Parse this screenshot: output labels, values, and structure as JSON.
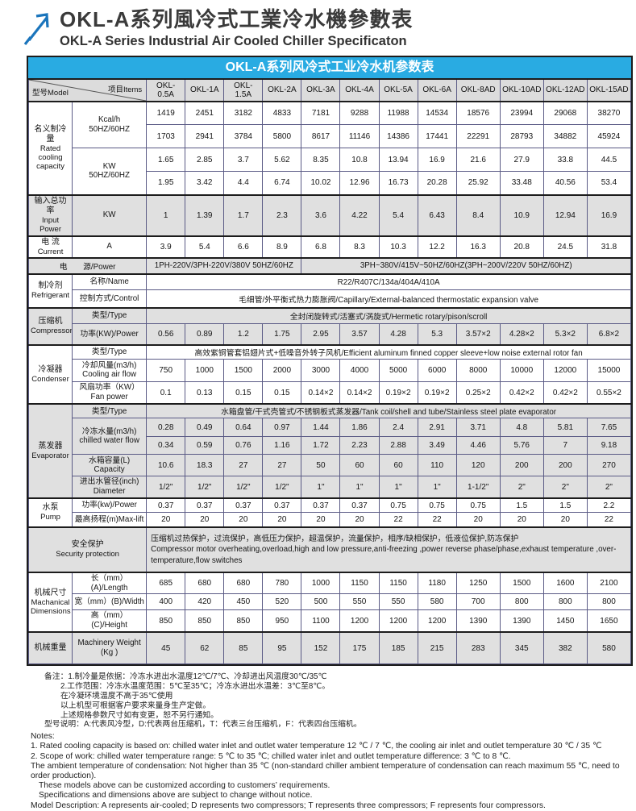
{
  "colors": {
    "accent_blue": "#29abe2",
    "logo_blue": "#1b75bc",
    "shade_gray": "#e0e0e0",
    "border_dark": "#1c1c1c"
  },
  "page": {
    "title_zh": "OKL-A系列風冷式工業冷水機參數表",
    "title_en": "OKL-A Series Industrial Air Cooled Chiller Specificaton"
  },
  "table": {
    "caption": "OKL-A系列风冷式工业冷水机参数表",
    "corner": {
      "model": "型号Model",
      "items": "项目Items"
    },
    "models": [
      "OKL-0.5A",
      "OKL-1A",
      "OKL-1.5A",
      "OKL-2A",
      "OKL-3A",
      "OKL-4A",
      "OKL-5A",
      "OKL-6A",
      "OKL-8AD",
      "OKL-10AD",
      "OKL-12AD",
      "OKL-15AD"
    ],
    "cooling": {
      "zh": "名义制冷量",
      "en": "Rated cooling capacity",
      "kcal_label1": "Kcal/h",
      "kcal_label2": "50HZ/60HZ",
      "kcal_50": [
        "1419",
        "2451",
        "3182",
        "4833",
        "7181",
        "9288",
        "11988",
        "14534",
        "18576",
        "23994",
        "29068",
        "38270"
      ],
      "kcal_60": [
        "1703",
        "2941",
        "3784",
        "5800",
        "8617",
        "11146",
        "14386",
        "17441",
        "22291",
        "28793",
        "34882",
        "45924"
      ],
      "kw_label1": "KW",
      "kw_label2": "50HZ/60HZ",
      "kw_50": [
        "1.65",
        "2.85",
        "3.7",
        "5.62",
        "8.35",
        "10.8",
        "13.94",
        "16.9",
        "21.6",
        "27.9",
        "33.8",
        "44.5"
      ],
      "kw_60": [
        "1.95",
        "3.42",
        "4.4",
        "6.74",
        "10.02",
        "12.96",
        "16.73",
        "20.28",
        "25.92",
        "33.48",
        "40.56",
        "53.4"
      ]
    },
    "input_power": {
      "zh": "输入总功率",
      "en": "Input Power",
      "unit": "KW",
      "values": [
        "1",
        "1.39",
        "1.7",
        "2.3",
        "3.6",
        "4.22",
        "5.4",
        "6.43",
        "8.4",
        "10.9",
        "12.94",
        "16.9"
      ]
    },
    "current": {
      "zh": "电 流",
      "en": "Current",
      "unit": "A",
      "values": [
        "3.9",
        "5.4",
        "6.6",
        "8.9",
        "6.8",
        "8.3",
        "10.3",
        "12.2",
        "16.3",
        "20.8",
        "24.5",
        "31.8"
      ]
    },
    "power_supply": {
      "label": "电　　源/Power",
      "left": "1PH-220V/3PH-220V/380V 50HZ/60HZ",
      "right": "3PH~380V/415V~50HZ/60HZ(3PH~200V/220V  50HZ/60HZ)"
    },
    "refrigerant": {
      "zh": "制冷剂",
      "en": "Refrigerant",
      "name_label": "名称/Name",
      "name_value": "R22/R407C/134a/404A/410A",
      "control_label": "控制方式/Control",
      "control_value": "毛细管/外平衡式热力膨胀阀/Capillary/External-balanced thermostatic expansion valve"
    },
    "compressor": {
      "zh": "压缩机",
      "en": "Compressor",
      "type_label": "类型/Type",
      "type_value": "全封闭旋转式/活塞式/涡旋式/Hermetic rotary/pison/scroll",
      "power_label": "功率(KW)/Power",
      "power_values": [
        "0.56",
        "0.89",
        "1.2",
        "1.75",
        "2.95",
        "3.57",
        "4.28",
        "5.3",
        "3.57×2",
        "4.28×2",
        "5.3×2",
        "6.8×2"
      ]
    },
    "condenser": {
      "zh": "冷凝器",
      "en": "Condenser",
      "type_label": "类型/Type",
      "type_value": "高效紫铜管套铝翅片式+低噪音外转子风机/Efficient aluminum finned copper sleeve+low noise external rotor fan",
      "airflow_label1": "冷却风量(m3/h)",
      "airflow_label2": "Cooling air flow",
      "airflow_values": [
        "750",
        "1000",
        "1500",
        "2000",
        "3000",
        "4000",
        "5000",
        "6000",
        "8000",
        "10000",
        "12000",
        "15000"
      ],
      "fan_label1": "风扇功率（KW）",
      "fan_label2": "Fan power",
      "fan_values": [
        "0.1",
        "0.13",
        "0.15",
        "0.15",
        "0.14×2",
        "0.14×2",
        "0.19×2",
        "0.19×2",
        "0.25×2",
        "0.42×2",
        "0.42×2",
        "0.55×2"
      ]
    },
    "evaporator": {
      "zh": "蒸发器",
      "en": "Evaporator",
      "type_label": "类型/Type",
      "type_value": "水箱盘管/干式壳管式/不锈钢板式蒸发器/Tank coil/shell and tube/Stainless steel plate evaporator",
      "cwf_label1": "冷冻水量(m3/h)",
      "cwf_label2": "chilled water flow",
      "cwf_50": [
        "0.28",
        "0.49",
        "0.64",
        "0.97",
        "1.44",
        "1.86",
        "2.4",
        "2.91",
        "3.71",
        "4.8",
        "5.81",
        "7.65"
      ],
      "cwf_60": [
        "0.34",
        "0.59",
        "0.76",
        "1.16",
        "1.72",
        "2.23",
        "2.88",
        "3.49",
        "4.46",
        "5.76",
        "7",
        "9.18"
      ],
      "capacity_label1": "水箱容量(L)",
      "capacity_label2": "Capacity",
      "capacity_values": [
        "10.6",
        "18.3",
        "27",
        "27",
        "50",
        "60",
        "60",
        "110",
        "120",
        "200",
        "200",
        "270"
      ],
      "diameter_label1": "进出水管径(inch)",
      "diameter_label2": "Diameter",
      "diameter_values": [
        "1/2\"",
        "1/2\"",
        "1/2\"",
        "1/2\"",
        "1\"",
        "1\"",
        "1\"",
        "1\"",
        "1-1/2\"",
        "2\"",
        "2\"",
        "2\""
      ]
    },
    "pump": {
      "zh": "水泵",
      "en": "Pump",
      "power_label": "功率(kw)/Power",
      "power_values": [
        "0.37",
        "0.37",
        "0.37",
        "0.37",
        "0.37",
        "0.37",
        "0.75",
        "0.75",
        "0.75",
        "1.5",
        "1.5",
        "2.2"
      ],
      "lift_label": "最高扬程(m)Max-lift",
      "lift_values": [
        "20",
        "20",
        "20",
        "20",
        "20",
        "20",
        "22",
        "22",
        "20",
        "20",
        "20",
        "22"
      ]
    },
    "security": {
      "zh": "安全保护",
      "en": "Security protection",
      "text_zh": "压缩机过热保护，过流保护，高低压力保护，超温保护，流量保护，相序/缺相保护，低液位保护,防冻保护",
      "text_en": "Compressor motor overheating,overload,high and low pressure,anti-freezing ,power reverse phase/phase,exhaust temperature ,over-temperature,flow switches"
    },
    "dimensions": {
      "zh": "机械尺寸",
      "en": "Machanical Dimensions",
      "length_label": "长（mm）(A)/Length",
      "length_values": [
        "685",
        "680",
        "680",
        "780",
        "1000",
        "1150",
        "1150",
        "1180",
        "1250",
        "1500",
        "1600",
        "2100"
      ],
      "width_label": "宽（mm）(B)/Width",
      "width_values": [
        "400",
        "420",
        "450",
        "520",
        "500",
        "550",
        "550",
        "580",
        "700",
        "800",
        "800",
        "800"
      ],
      "height_label": "高（mm）(C)/Height",
      "height_values": [
        "850",
        "850",
        "850",
        "950",
        "1100",
        "1200",
        "1200",
        "1200",
        "1390",
        "1390",
        "1450",
        "1650"
      ]
    },
    "weight": {
      "zh": "机械重量",
      "label1": "Machinery Weight",
      "label2": "(Kg )",
      "values": [
        "45",
        "62",
        "85",
        "95",
        "152",
        "175",
        "185",
        "215",
        "283",
        "345",
        "382",
        "580"
      ]
    }
  },
  "notes_zh": [
    {
      "text": "备注：1.制冷量是依据：冷冻水进出水温度12℃/7℃、冷却进出风温度30℃/35℃",
      "indent": 0
    },
    {
      "text": "2.工作范围：冷冻水温度范围：5℃至35℃；冷冻水进出水温差：3℃至8℃。",
      "indent": 1
    },
    {
      "text": "在冷凝环境温度不高于35℃使用",
      "indent": 1
    },
    {
      "text": "以上机型可根据客户要求来量身生产定做。",
      "indent": 1
    },
    {
      "text": "上述规格参数尺寸如有变更，恕不另行通知。",
      "indent": 1
    },
    {
      "text": "型号说明：A:代表风冷型，D:代表两台压缩机，T：代表三台压缩机，F：代表四台压缩机。",
      "indent": 0
    }
  ],
  "notes_en": [
    {
      "text": "Notes:",
      "indent": 0
    },
    {
      "text": "1. Rated cooling capacity is based on: chilled water inlet and outlet water temperature 12 ℃ / 7 ℃, the cooling air inlet and outlet temperature 30 ℃ / 35 ℃",
      "indent": 0
    },
    {
      "text": "2. Scope of work: chilled water temperature range: 5 ℃ to 35 ℃; chilled water inlet and outlet temperature difference: 3 ℃ to 8 ℃.",
      "indent": 0
    },
    {
      "text": "The ambient temperature of condensation: Not higher than 35 ℃ (non-standard chiller ambient temperature of condensation can reach maximum 55 ℃, need to order production).",
      "indent": 0
    },
    {
      "text": "These models above can be customized according to customers’  requirements.",
      "indent": 1
    },
    {
      "text": "Specifications and dimensions above are subject to change without notice.",
      "indent": 1
    },
    {
      "text": "Model Description: A represents air-cooled; D represents two compressors; T represents three compressors; F represents four compressors.",
      "indent": 0
    }
  ]
}
